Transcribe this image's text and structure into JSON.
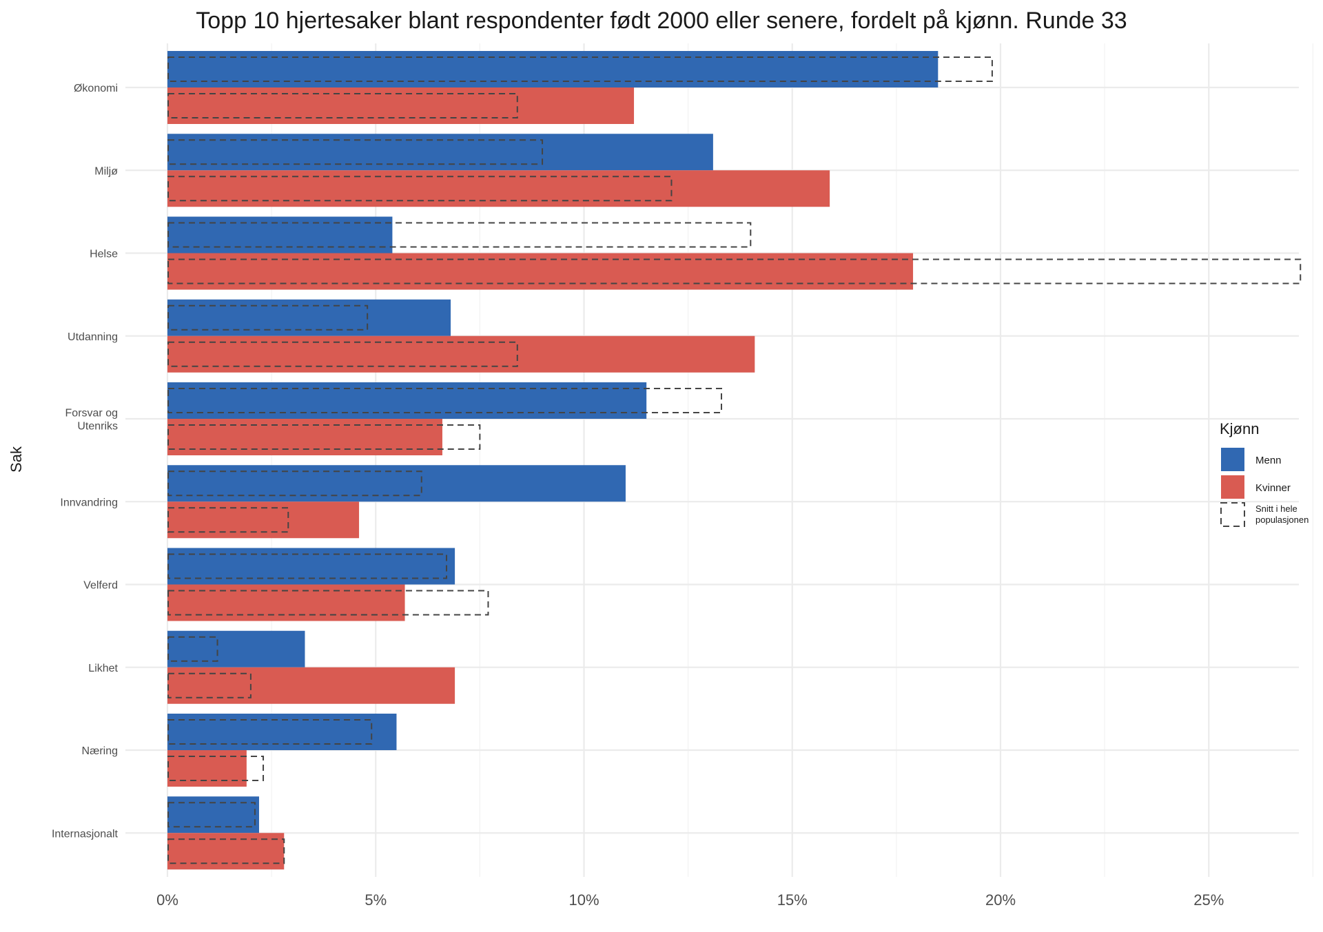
{
  "chart_data": {
    "type": "bar",
    "orientation": "horizontal",
    "title": "Topp 10 hjertesaker blant respondenter født 2000 eller senere, fordelt på kjønn. Runde 33",
    "ylabel": "Sak",
    "xlabel": "",
    "xlim": [
      0,
      27.5
    ],
    "x_ticks": [
      0,
      5,
      10,
      15,
      20,
      25
    ],
    "x_tick_labels": [
      "0%",
      "5%",
      "10%",
      "15%",
      "20%",
      "25%"
    ],
    "categories": [
      [
        "Økonomi"
      ],
      [
        "Miljø"
      ],
      [
        "Helse"
      ],
      [
        "Utdanning"
      ],
      [
        "Forsvar og",
        "Utenriks"
      ],
      [
        "Innvandring"
      ],
      [
        "Velferd"
      ],
      [
        "Likhet"
      ],
      [
        "Næring"
      ],
      [
        "Internasjonalt"
      ]
    ],
    "series": [
      {
        "name": "Menn",
        "color": "#3068B2",
        "values": [
          18.5,
          13.1,
          5.4,
          6.8,
          11.5,
          11.0,
          6.9,
          3.3,
          5.5,
          2.2
        ],
        "population_average": [
          19.8,
          9.0,
          14.0,
          4.8,
          13.3,
          6.1,
          6.7,
          1.2,
          4.9,
          2.1
        ]
      },
      {
        "name": "Kvinner",
        "color": "#D95B52",
        "values": [
          11.2,
          15.9,
          17.9,
          14.1,
          6.6,
          4.6,
          5.7,
          6.9,
          1.9,
          2.8
        ],
        "population_average": [
          8.4,
          12.1,
          27.2,
          8.4,
          7.5,
          2.9,
          7.7,
          2.0,
          2.3,
          2.8
        ]
      }
    ],
    "legend": {
      "title": "Kjønn",
      "position": "right",
      "items": [
        {
          "label": "Menn",
          "color": "#3068B2"
        },
        {
          "label": "Kvinner",
          "color": "#D95B52"
        },
        {
          "label": [
            "Snitt i hele",
            "populasjonen"
          ],
          "style": "dashed-outline"
        }
      ]
    },
    "grid": true
  }
}
